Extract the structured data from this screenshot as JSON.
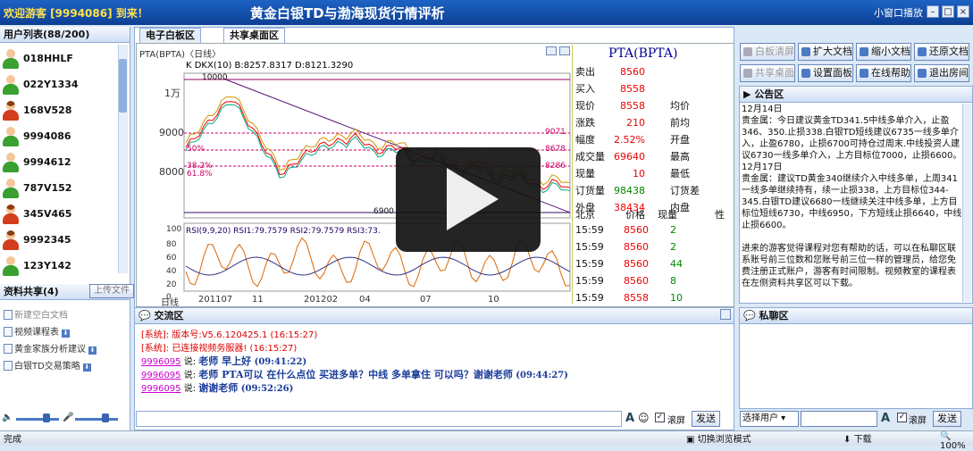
{
  "topbar": {
    "welcome": "欢迎游客 [9994086] 到来！",
    "title": "黄金白银TD与渤海现货行情评析",
    "mini": "小窗口播放"
  },
  "users": {
    "header": "用户列表(88/200)",
    "items": [
      "018HHLF",
      "022Y1334",
      "168V528",
      "9994086",
      "9994612",
      "787V152",
      "345V465",
      "9992345",
      "123Y142"
    ]
  },
  "shares": {
    "header": "资料共享(4)",
    "upload": "上传文件",
    "items": [
      "新建空白文档",
      "视频课程表",
      "黄金家族分析建议",
      "白银TD交易策略"
    ]
  },
  "tabs": [
    "电子白板区",
    "共享桌面区"
  ],
  "chart": {
    "header": "PTA(BPTA)〈日线〉",
    "kline": "K DKX(10) B:8257.8317 D:8121.3290",
    "rsi": "RSI(9,9,20) RSI1:79.7579 RSI2:79.7579 RSI3:73.",
    "fib": [
      "61.8%",
      "50%",
      "38.2%"
    ],
    "fibv": [
      "9071",
      "8678",
      "8286"
    ],
    "peak": "10000",
    "low": "6900",
    "yaxis": [
      "1万",
      "9000",
      "8000"
    ],
    "rsiaxis": [
      "100",
      "80",
      "60",
      "40",
      "20",
      "0"
    ],
    "xaxis": [
      "日线",
      "201107",
      "11",
      "201202",
      "04",
      "07",
      "10"
    ]
  },
  "chart_data": {
    "type": "line",
    "title": "PTA(BPTA)〈日线〉",
    "x": [
      "201107",
      "11",
      "201202",
      "04",
      "07",
      "10"
    ],
    "ylim": [
      6900,
      10600
    ],
    "kline_series": [
      {
        "name": "DKX(10)",
        "last": "B:8257.8317"
      },
      {
        "name": "D",
        "last": "8121.3290"
      }
    ],
    "rsi": {
      "RSI1": 79.7579,
      "RSI2": 79.7579,
      "RSI3": "73."
    },
    "fibonacci": [
      {
        "level": "61.8%",
        "value": 9071
      },
      {
        "level": "50%",
        "value": 8678
      },
      {
        "level": "38.2%",
        "value": 8286
      }
    ],
    "peak": 10000,
    "low": 6900
  },
  "quote": {
    "title": "PTA(BPTA)",
    "rows": [
      [
        "卖出",
        "8560",
        "",
        ""
      ],
      [
        "买入",
        "8558",
        "",
        ""
      ],
      [
        "现价",
        "8558",
        "均价",
        ""
      ],
      [
        "涨跌",
        "210",
        "前均",
        ""
      ],
      [
        "幅度",
        "2.52%",
        "开盘",
        ""
      ],
      [
        "成交量",
        "69640",
        "最高",
        ""
      ],
      [
        "现量",
        "10",
        "最低",
        ""
      ],
      [
        "订货量",
        "98438",
        "订货差",
        ""
      ],
      [
        "外盘",
        "38434",
        "内盘",
        ""
      ]
    ],
    "tickhead": [
      "北京",
      "价格",
      "现量",
      "性"
    ],
    "ticks": [
      [
        "15:59",
        "8560",
        "2"
      ],
      [
        "15:59",
        "8560",
        "2"
      ],
      [
        "15:59",
        "8560",
        "44"
      ],
      [
        "15:59",
        "8560",
        "8"
      ],
      [
        "15:59",
        "8558",
        "10"
      ]
    ]
  },
  "chat": {
    "header": "交流区",
    "lines": [
      {
        "sys": "[系统]: 版本号:V5.6.120425.1 (16:15:27)"
      },
      {
        "sys": "[系统]: 已连接视频务服器! (16:15:27)"
      },
      {
        "user": "9996095",
        "say": " 说: ",
        "text": "老师 早上好",
        "time": " (09:41:22)"
      },
      {
        "user": "9996095",
        "say": " 说: ",
        "text": "老师 PTA可以 在什么点位 买进多单？中线 多单拿住 可以吗？谢谢老师",
        "time": " (09:44:27)"
      },
      {
        "user": "9996095",
        "say": " 说: ",
        "text": "谢谢老师",
        "time": " (09:52:26)"
      }
    ],
    "lock": "滚屏",
    "send": "发送"
  },
  "right": {
    "buttons": [
      "白板清屏",
      "扩大文档",
      "缩小文档",
      "还原文档",
      "共享桌面",
      "设置面板",
      "在线帮助",
      "退出房间"
    ],
    "notice_head": "公告区",
    "notice": "12月14日\n贵金属：今日建议黄金TD341.5中线多单介入，止盈346、350.止损338.白银TD短线建议6735一线多单介入，止盈6780，止损6700可持仓过周末.中线投资人建议6730一线多单介入，上方目标位7000，止损6600。\n12月17日\n贵金属：建议TD黄金340继续介入中线多单，上周341一线多单继续持有，续一止损338，上方目标位344-345.白银TD建议6680一线继续关注中线多单，上方目标位短线6730，中线6950，下方短线止损6640，中线止损6600。\n\n进来的游客觉得课程对您有帮助的话，可以在私聊区联系账号前三位数和您账号前三位一样的管理员，给您免费注册正式账户，游客有时间限制。视频教室的课程表在左侧资料共享区可以下载。",
    "private_head": "私聊区",
    "select_user": "选择用户",
    "lock": "滚屏",
    "send": "发送"
  },
  "status": {
    "left": "完成",
    "mode": "切换浏览模式",
    "download": "下载",
    "zoom": "100%"
  }
}
